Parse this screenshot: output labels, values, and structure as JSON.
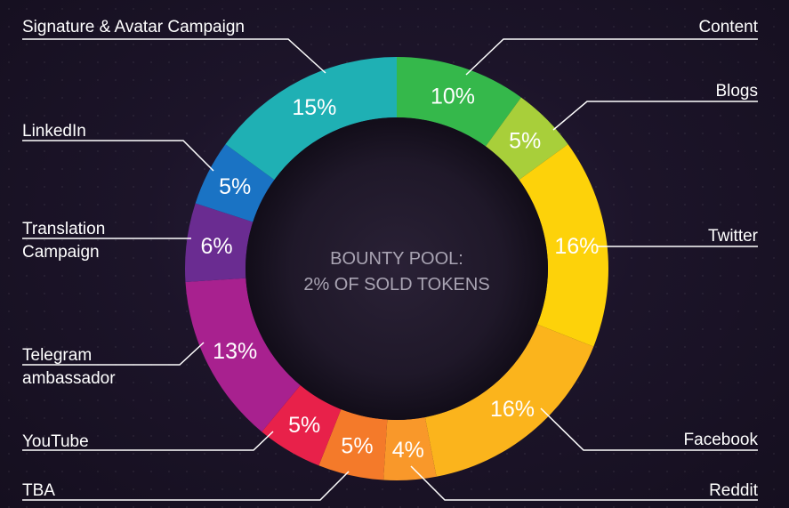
{
  "chart_data": {
    "type": "pie",
    "center_text": [
      "BOUNTY POOL:",
      "2% OF SOLD TOKENS"
    ],
    "slices": [
      {
        "label": "Content",
        "value": 10,
        "value_label": "10%",
        "color": "#35b84b"
      },
      {
        "label": "Blogs",
        "value": 5,
        "value_label": "5%",
        "color": "#a8cf3a"
      },
      {
        "label": "Twitter",
        "value": 16,
        "value_label": "16%",
        "color": "#fdd20a"
      },
      {
        "label": "Facebook",
        "value": 16,
        "value_label": "16%",
        "color": "#fbb41c"
      },
      {
        "label": "Reddit",
        "value": 4,
        "value_label": "4%",
        "color": "#f9982a"
      },
      {
        "label": "TBA",
        "value": 5,
        "value_label": "5%",
        "color": "#f47a2a"
      },
      {
        "label": "YouTube",
        "value": 5,
        "value_label": "5%",
        "color": "#e8214a"
      },
      {
        "label": "Telegram\nambassador",
        "value": 13,
        "value_label": "13%",
        "color": "#a8218f"
      },
      {
        "label": "Translation\nCampaign",
        "value": 6,
        "value_label": "6%",
        "color": "#6a2c91"
      },
      {
        "label": "LinkedIn",
        "value": 5,
        "value_label": "5%",
        "color": "#1a73c4"
      },
      {
        "label": "Signature & Avatar Campaign",
        "value": 15,
        "value_label": "15%",
        "color": "#1fb0b4"
      }
    ]
  }
}
